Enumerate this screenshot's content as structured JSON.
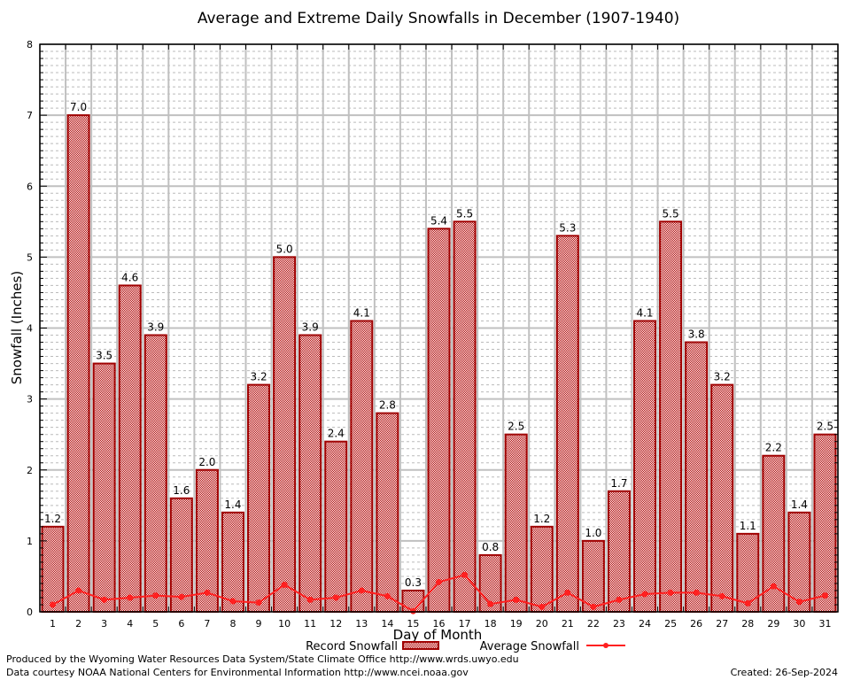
{
  "chart_data": {
    "type": "bar",
    "title": "Average and Extreme Daily Snowfalls in December (1907-1940)",
    "xlabel": "Day of Month",
    "ylabel": "Snowfall (Inches)",
    "ylim": [
      0,
      8
    ],
    "yticks": [
      "0",
      "1",
      "2",
      "3",
      "4",
      "5",
      "6",
      "7",
      "8"
    ],
    "grid": true,
    "legend_position": "bottom",
    "categories": [
      "1",
      "2",
      "3",
      "4",
      "5",
      "6",
      "7",
      "8",
      "9",
      "10",
      "11",
      "12",
      "13",
      "14",
      "15",
      "16",
      "17",
      "18",
      "19",
      "20",
      "21",
      "22",
      "23",
      "24",
      "25",
      "26",
      "27",
      "28",
      "29",
      "30",
      "31"
    ],
    "series": [
      {
        "name": "Record Snowfall",
        "type": "bar",
        "color": "#a00000",
        "values": [
          1.2,
          7.0,
          3.5,
          4.6,
          3.9,
          1.6,
          2.0,
          1.4,
          3.2,
          5.0,
          3.9,
          2.4,
          4.1,
          2.8,
          0.3,
          5.4,
          5.5,
          0.8,
          2.5,
          1.2,
          5.3,
          1.0,
          1.7,
          4.1,
          5.5,
          3.8,
          3.2,
          1.1,
          2.2,
          1.4,
          2.5
        ],
        "labels": [
          "1.2",
          "7.0",
          "3.5",
          "4.6",
          "3.9",
          "1.6",
          "2.0",
          "1.4",
          "3.2",
          "5.0",
          "3.9",
          "2.4",
          "4.1",
          "2.8",
          "0.3",
          "5.4",
          "5.5",
          "0.8",
          "2.5",
          "1.2",
          "5.3",
          "1.0",
          "1.7",
          "4.1",
          "5.5",
          "3.8",
          "3.2",
          "1.1",
          "2.2",
          "1.4",
          "2.5"
        ]
      },
      {
        "name": "Average Snowfall",
        "type": "line",
        "color": "#ff2020",
        "values": [
          0.1,
          0.3,
          0.17,
          0.2,
          0.23,
          0.21,
          0.27,
          0.15,
          0.13,
          0.38,
          0.17,
          0.2,
          0.3,
          0.22,
          0.01,
          0.42,
          0.52,
          0.11,
          0.17,
          0.07,
          0.27,
          0.07,
          0.17,
          0.25,
          0.27,
          0.27,
          0.22,
          0.12,
          0.36,
          0.14,
          0.23
        ]
      }
    ]
  },
  "footer": {
    "produced_by": "Produced by the Wyoming Water Resources Data System/State Climate Office http://www.wrds.uwyo.edu",
    "courtesy": "Data courtesy NOAA National Centers for Environmental Information http://www.ncei.noaa.gov",
    "created": "Created: 26-Sep-2024"
  }
}
